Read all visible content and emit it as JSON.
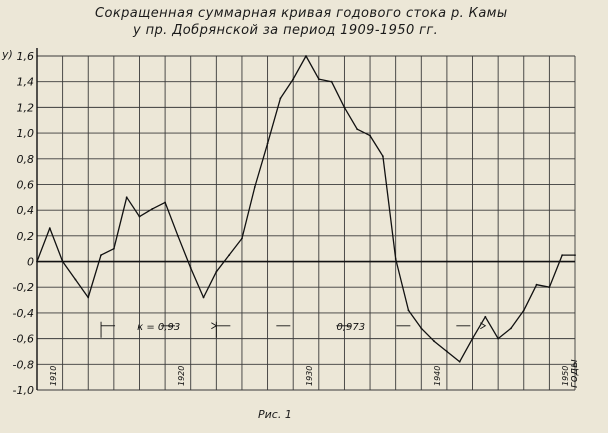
{
  "chart_data": {
    "type": "line",
    "title": "Сокращенная суммарная кривая годового стока р. Камы",
    "subtitle": "у пр. Добрянской за период 1909-1950 гг.",
    "xlabel": "годы",
    "ylabel": "у)",
    "caption": "Рис. 1",
    "ylim": [
      -1.0,
      1.6
    ],
    "xlim": [
      1909,
      1951
    ],
    "grid": true,
    "y_ticks": [
      "1,6",
      "1,4",
      "1,2",
      "1,0",
      "0,8",
      "0,6",
      "0,4",
      "0,2",
      "0",
      "-0,2",
      "-0,4",
      "-0,6",
      "-0,8",
      "-1,0"
    ],
    "y_tick_values": [
      1.6,
      1.4,
      1.2,
      1.0,
      0.8,
      0.6,
      0.4,
      0.2,
      0,
      -0.2,
      -0.4,
      -0.6,
      -0.8,
      -1.0
    ],
    "x_ticks": [
      "1910",
      "1920",
      "1930",
      "1940",
      "1950"
    ],
    "x_tick_values": [
      1910,
      1920,
      1930,
      1940,
      1950
    ],
    "annotations": [
      {
        "text": "к = 0,93",
        "from_year": 1914,
        "to_year": 1923,
        "y": -0.5
      },
      {
        "text": "0,973",
        "from_year": 1923,
        "to_year": 1944,
        "y": -0.5
      }
    ],
    "series": [
      {
        "x": [
          1909,
          1910,
          1911,
          1912,
          1913,
          1914,
          1915,
          1916,
          1917,
          1918,
          1919,
          1920,
          1921,
          1922,
          1923,
          1924,
          1925,
          1926,
          1927,
          1928,
          1929,
          1930,
          1931,
          1932,
          1933,
          1934,
          1935,
          1936,
          1937,
          1938,
          1939,
          1940,
          1941,
          1942,
          1943,
          1944,
          1945,
          1946,
          1947,
          1948,
          1949,
          1950,
          1951
        ],
        "y": [
          0.0,
          0.26,
          0.0,
          -0.14,
          -0.28,
          0.05,
          0.1,
          0.5,
          0.35,
          0.41,
          0.46,
          0.2,
          -0.05,
          -0.28,
          -0.08,
          0.05,
          0.18,
          0.58,
          0.92,
          1.27,
          1.42,
          1.6,
          1.42,
          1.4,
          1.2,
          1.03,
          0.98,
          0.82,
          0.02,
          -0.38,
          -0.52,
          -0.62,
          -0.7,
          -0.78,
          -0.6,
          -0.43,
          -0.6,
          -0.52,
          -0.38,
          -0.18,
          -0.2,
          0.05,
          0.05
        ]
      }
    ]
  }
}
